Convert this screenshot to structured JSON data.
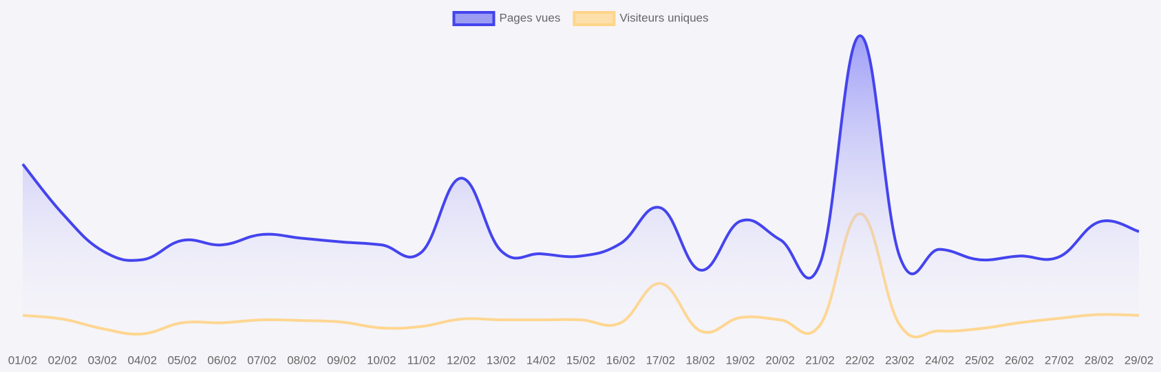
{
  "chart_data": {
    "type": "area-line",
    "categories": [
      "01/02",
      "02/02",
      "03/02",
      "04/02",
      "05/02",
      "06/02",
      "07/02",
      "08/02",
      "09/02",
      "10/02",
      "11/02",
      "12/02",
      "13/02",
      "14/02",
      "15/02",
      "16/02",
      "17/02",
      "18/02",
      "19/02",
      "20/02",
      "21/02",
      "22/02",
      "23/02",
      "24/02",
      "25/02",
      "26/02",
      "27/02",
      "28/02",
      "29/02"
    ],
    "series": [
      {
        "name": "Pages vues",
        "color": "#4444ee",
        "fill": true,
        "values": [
          247,
          180,
          130,
          118,
          144,
          138,
          152,
          147,
          142,
          138,
          128,
          228,
          130,
          126,
          123,
          140,
          188,
          104,
          170,
          145,
          113,
          420,
          122,
          132,
          118,
          123,
          122,
          169,
          156
        ]
      },
      {
        "name": "Visiteurs uniques",
        "color": "#ffd58a",
        "fill": false,
        "values": [
          43,
          38,
          25,
          18,
          33,
          33,
          37,
          36,
          34,
          26,
          28,
          38,
          37,
          37,
          37,
          33,
          86,
          22,
          40,
          37,
          30,
          180,
          30,
          22,
          25,
          33,
          39,
          44,
          43
        ]
      }
    ],
    "legend": "top"
  }
}
